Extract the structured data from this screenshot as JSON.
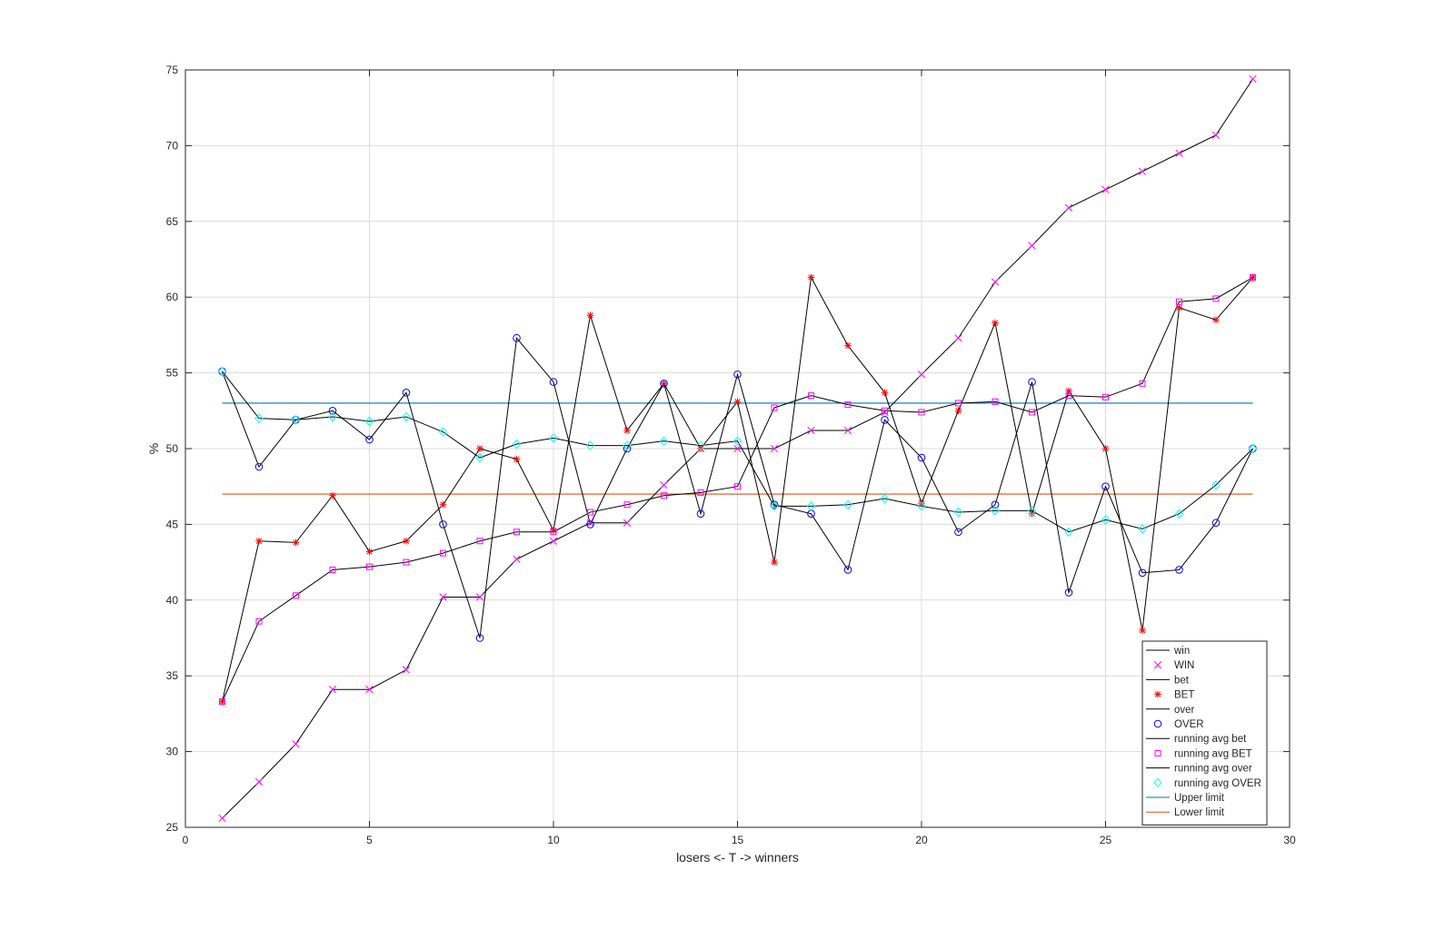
{
  "chart_data": {
    "type": "line",
    "xlabel": "losers <- T -> winners",
    "ylabel": "%",
    "xlim": [
      0,
      30
    ],
    "ylim": [
      25,
      75
    ],
    "xticks": [
      0,
      5,
      10,
      15,
      20,
      25,
      30
    ],
    "yticks": [
      25,
      30,
      35,
      40,
      45,
      50,
      55,
      60,
      65,
      70,
      75
    ],
    "grid": true,
    "legend_position": "bottom-right",
    "x": [
      1,
      2,
      3,
      4,
      5,
      6,
      7,
      8,
      9,
      10,
      11,
      12,
      13,
      14,
      15,
      16,
      17,
      18,
      19,
      20,
      21,
      22,
      23,
      24,
      25,
      26,
      27,
      28,
      29
    ],
    "series": [
      {
        "name": "WIN",
        "line_label": "win",
        "marker": "x",
        "color": "#ff00ff",
        "values": [
          25.6,
          28.0,
          30.5,
          34.1,
          34.1,
          35.4,
          40.2,
          40.2,
          42.7,
          43.9,
          45.1,
          45.1,
          47.6,
          50.0,
          50.0,
          50.0,
          51.2,
          51.2,
          52.4,
          54.9,
          57.3,
          61.0,
          63.4,
          65.9,
          67.1,
          68.3,
          69.5,
          70.7,
          74.4
        ]
      },
      {
        "name": "BET",
        "line_label": "bet",
        "marker": "asterisk",
        "color": "#ff0000",
        "values": [
          33.3,
          43.9,
          43.8,
          46.9,
          43.2,
          43.9,
          46.3,
          50.0,
          49.3,
          44.6,
          58.8,
          51.2,
          54.3,
          50.0,
          53.1,
          42.5,
          61.3,
          56.8,
          53.7,
          46.4,
          52.5,
          58.3,
          45.7,
          53.8,
          50.0,
          38.0,
          59.3,
          58.5,
          61.3
        ]
      },
      {
        "name": "OVER",
        "line_label": "over",
        "marker": "circle",
        "color": "#0000ff",
        "values": [
          55.1,
          48.8,
          51.9,
          52.5,
          50.6,
          53.7,
          45.0,
          37.5,
          57.3,
          54.4,
          45.0,
          50.0,
          54.3,
          45.7,
          54.9,
          46.3,
          45.7,
          42.0,
          51.9,
          49.4,
          44.5,
          46.3,
          54.4,
          40.5,
          47.5,
          41.8,
          42.0,
          45.1,
          50.0
        ]
      },
      {
        "name": "running avg BET",
        "line_label": "running avg bet",
        "marker": "square",
        "color": "#ff00ff",
        "values": [
          33.3,
          38.6,
          40.3,
          42.0,
          42.2,
          42.5,
          43.1,
          43.9,
          44.5,
          44.5,
          45.8,
          46.3,
          46.9,
          47.1,
          47.5,
          52.7,
          53.5,
          52.9,
          52.5,
          52.4,
          53.0,
          53.1,
          52.4,
          53.5,
          53.4,
          54.3,
          59.7,
          59.9,
          61.3
        ]
      },
      {
        "name": "running avg OVER",
        "line_label": "running avg over",
        "marker": "diamond",
        "color": "#00ffff",
        "values": [
          55.1,
          52.0,
          51.9,
          52.1,
          51.8,
          52.1,
          51.1,
          49.4,
          50.3,
          50.7,
          50.2,
          50.2,
          50.5,
          50.2,
          50.5,
          46.2,
          46.2,
          46.3,
          46.7,
          46.2,
          45.8,
          45.9,
          45.9,
          44.5,
          45.3,
          44.7,
          45.7,
          47.6,
          50.0
        ]
      }
    ],
    "hlines": [
      {
        "name": "Upper limit",
        "value": 53,
        "color": "#0072bd"
      },
      {
        "name": "Lower limit",
        "value": 47,
        "color": "#d95319"
      }
    ],
    "legend_entries": [
      "win",
      "WIN",
      "bet",
      "BET",
      "over",
      "OVER",
      "running avg bet",
      "running avg BET",
      "running avg over",
      "running avg OVER",
      "Upper limit",
      "Lower limit"
    ]
  }
}
